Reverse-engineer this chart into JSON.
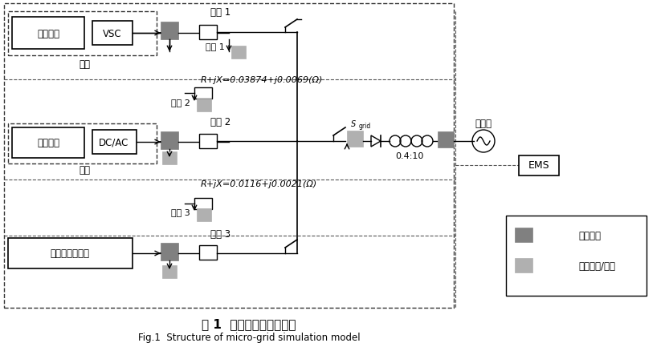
{
  "title_cn": "图 1  微网仿真模型结构图",
  "title_en": "Fig.1  Structure of micro-grid simulation model",
  "bg_color": "#ffffff",
  "dark_gray": "#808080",
  "light_gray": "#b0b0b0",
  "line_color": "#000000",
  "dashed_color": "#555555",
  "text_color": "#000000",
  "box_edge": "#000000",
  "label_storage": "储能装置",
  "label_vsc": "VSC",
  "label_storage_tag": "储能",
  "label_pv": "光伏阵列",
  "label_dcac": "DC/AC",
  "label_pv_tag": "光伏",
  "label_wind": "异步风力发电机",
  "label_line1": "线路 1",
  "label_line2": "线路 2",
  "label_line3": "线路 3",
  "label_load1": "负荷 1",
  "label_load2": "负荷 2",
  "label_load3": "负荷 3",
  "label_impedance1": "R+jX=0.03874+j0.0069(Ω)",
  "label_impedance2": "R+jX=0.0116+j0.0021(Ω)",
  "label_sgrid": "S",
  "label_sgrid_sub": "grid",
  "label_ratio": "0.4:10",
  "label_grid": "配电网",
  "label_ems": "EMS",
  "label_protect": "保护控制",
  "label_power": "功率测量/控制"
}
